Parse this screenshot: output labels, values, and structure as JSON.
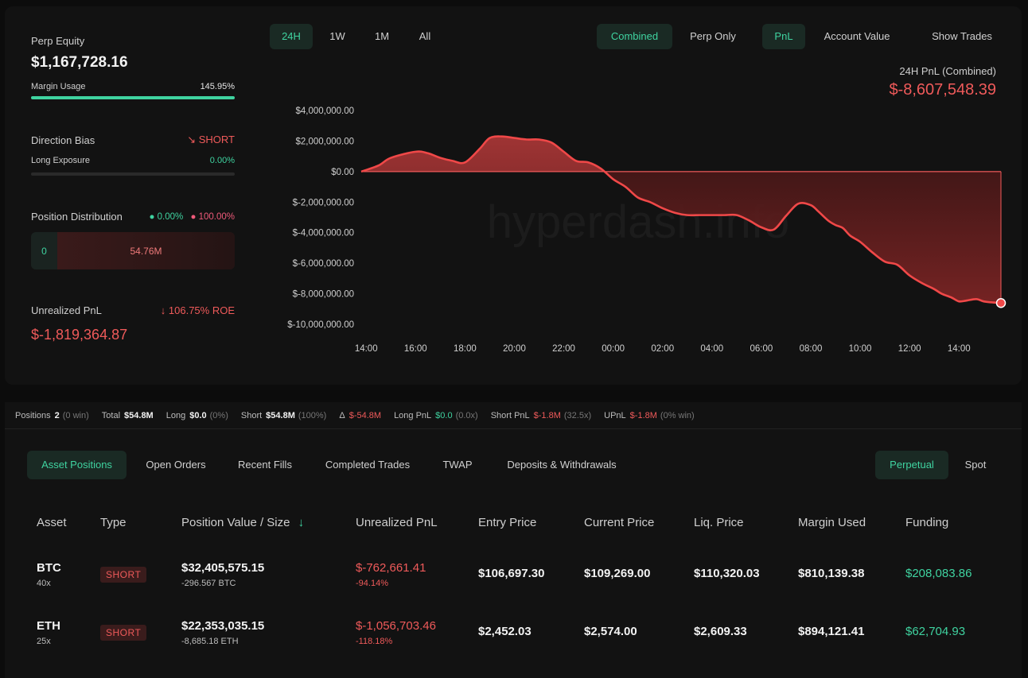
{
  "summary": {
    "perp_equity_label": "Perp Equity",
    "perp_equity_value": "$1,167,728.16",
    "margin_usage_label": "Margin Usage",
    "margin_usage_value": "145.95%",
    "margin_usage_fill": 1.0,
    "direction_bias_label": "Direction Bias",
    "direction_bias_value": "SHORT",
    "long_exposure_label": "Long Exposure",
    "long_exposure_value": "0.00%",
    "long_exposure_fill": 0.0,
    "position_distribution_label": "Position Distribution",
    "dist_long_pct": "0.00%",
    "dist_short_pct": "100.00%",
    "dist_long_value": "0",
    "dist_short_value": "54.76M",
    "unrealized_pnl_label": "Unrealized PnL",
    "roe_value": "106.75% ROE",
    "unrealized_pnl_value": "$-1,819,364.87"
  },
  "chart_controls": {
    "ranges": [
      "24H",
      "1W",
      "1M",
      "All"
    ],
    "active_range": "24H",
    "modes": [
      "Combined",
      "Perp Only"
    ],
    "active_mode": "Combined",
    "metrics": [
      "PnL",
      "Account Value"
    ],
    "active_metric": "PnL",
    "show_trades_label": "Show Trades"
  },
  "chart_header": {
    "label": "24H PnL (Combined)",
    "value": "$-8,607,548.39"
  },
  "watermark": "hyperdash.info",
  "chart_data": {
    "type": "area",
    "x_ticks": [
      "14:00",
      "16:00",
      "18:00",
      "20:00",
      "22:00",
      "00:00",
      "02:00",
      "04:00",
      "06:00",
      "08:00",
      "10:00",
      "12:00",
      "14:00"
    ],
    "y_ticks": [
      "$4,000,000.00",
      "$2,000,000.00",
      "$0.00",
      "$-2,000,000.00",
      "$-4,000,000.00",
      "$-6,000,000.00",
      "$-8,000,000.00",
      "$-10,000,000.00"
    ],
    "ylim": [
      -10000000,
      4000000
    ],
    "x_range_hours": [
      -0.2,
      25.7
    ],
    "series": [
      {
        "x": [
          -0.2,
          0.5,
          1,
          2,
          2.5,
          3,
          3.5,
          4,
          4.6,
          5,
          5.5,
          6,
          6.5,
          7,
          7.5,
          8,
          8.5,
          9,
          9.5,
          10,
          10.5,
          11,
          11.5,
          12,
          12.5,
          13,
          13.5,
          14,
          14.5,
          15,
          15.5,
          16,
          16.5,
          17,
          17.5,
          18,
          18.3,
          18.7,
          19,
          19.3,
          19.6,
          20,
          20.5,
          21,
          21.5,
          22,
          22.5,
          23,
          23.3,
          23.7,
          24,
          24.3,
          24.7,
          25,
          25.3,
          25.7
        ],
        "y": [
          0,
          400000,
          900000,
          1300000,
          1200000,
          900000,
          700000,
          600000,
          1500000,
          2200000,
          2300000,
          2200000,
          2100000,
          2100000,
          1900000,
          1300000,
          700000,
          600000,
          200000,
          -500000,
          -1000000,
          -1700000,
          -2000000,
          -2400000,
          -2700000,
          -2850000,
          -2850000,
          -2850000,
          -2850000,
          -2850000,
          -3200000,
          -3650000,
          -3800000,
          -2900000,
          -2100000,
          -2200000,
          -2600000,
          -3200000,
          -3500000,
          -3700000,
          -4200000,
          -4600000,
          -5300000,
          -5900000,
          -6100000,
          -6800000,
          -7300000,
          -7700000,
          -8000000,
          -8250000,
          -8500000,
          -8450000,
          -8350000,
          -8500000,
          -8560000,
          -8607548
        ]
      }
    ]
  },
  "stats": {
    "positions_label": "Positions",
    "positions_value": "2",
    "positions_note": "(0 win)",
    "total_label": "Total",
    "total_value": "$54.8M",
    "long_label": "Long",
    "long_value": "$0.0",
    "long_note": "(0%)",
    "short_label": "Short",
    "short_value": "$54.8M",
    "short_note": "(100%)",
    "delta_label": "Δ",
    "delta_value": "$-54.8M",
    "long_pnl_label": "Long PnL",
    "long_pnl_value": "$0.0",
    "long_pnl_note": "(0.0x)",
    "short_pnl_label": "Short PnL",
    "short_pnl_value": "$-1.8M",
    "short_pnl_note": "(32.5x)",
    "upnl_label": "UPnL",
    "upnl_value": "$-1.8M",
    "upnl_note": "(0% win)"
  },
  "tabs": {
    "items": [
      "Asset Positions",
      "Open Orders",
      "Recent Fills",
      "Completed Trades",
      "TWAP",
      "Deposits & Withdrawals"
    ],
    "active": "Asset Positions",
    "market": [
      "Perpetual",
      "Spot"
    ],
    "active_market": "Perpetual"
  },
  "table": {
    "headers": [
      "Asset",
      "Type",
      "Position Value / Size",
      "Unrealized PnL",
      "Entry Price",
      "Current Price",
      "Liq. Price",
      "Margin Used",
      "Funding"
    ],
    "rows": [
      {
        "asset": "BTC",
        "leverage": "40x",
        "type": "SHORT",
        "position_value": "$32,405,575.15",
        "size": "-296.567 BTC",
        "pnl": "$-762,661.41",
        "pnl_pct": "-94.14%",
        "entry": "$106,697.30",
        "current": "$109,269.00",
        "liq": "$110,320.03",
        "margin": "$810,139.38",
        "funding": "$208,083.86"
      },
      {
        "asset": "ETH",
        "leverage": "25x",
        "type": "SHORT",
        "position_value": "$22,353,035.15",
        "size": "-8,685.18 ETH",
        "pnl": "$-1,056,703.46",
        "pnl_pct": "-118.18%",
        "entry": "$2,452.03",
        "current": "$2,574.00",
        "liq": "$2,609.33",
        "margin": "$894,121.41",
        "funding": "$62,704.93"
      }
    ]
  },
  "colors": {
    "accent_green": "#3fd3a0",
    "loss_red": "#ef5a5a",
    "background": "#0c0c0c",
    "panel": "#121212"
  }
}
